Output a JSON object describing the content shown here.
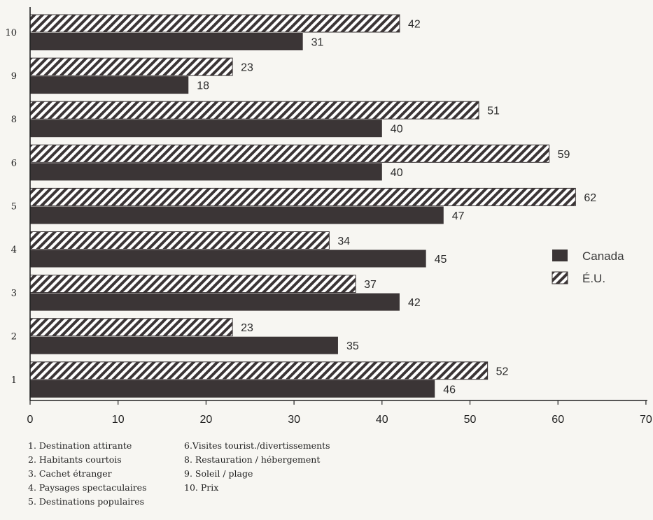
{
  "chart_data": {
    "type": "bar",
    "orientation": "horizontal",
    "categories": [
      "1",
      "2",
      "3",
      "4",
      "5",
      "6",
      "8",
      "9",
      "10"
    ],
    "series": [
      {
        "name": "É.U.",
        "pattern": "hatched",
        "color": "#3b3536",
        "values": [
          52,
          23,
          37,
          34,
          62,
          59,
          51,
          23,
          42
        ]
      },
      {
        "name": "Canada",
        "pattern": "solid",
        "color": "#3b3536",
        "values": [
          46,
          35,
          42,
          45,
          47,
          40,
          40,
          18,
          31
        ]
      }
    ],
    "xlim": [
      0,
      70
    ],
    "xticks": [
      0,
      10,
      20,
      30,
      40,
      50,
      60,
      70
    ],
    "legend": {
      "position": "right",
      "entries": [
        "Canada",
        "É.U."
      ]
    },
    "grid": false
  },
  "notes": {
    "left": [
      "1. Destination attirante",
      "2. Habitants courtois",
      "3. Cachet étranger",
      "4. Paysages spectaculaires",
      "5. Destinations populaires"
    ],
    "right": [
      "6.Visites tourist./divertissements",
      "8. Restauration / hébergement",
      "9. Soleil / plage",
      "10. Prix"
    ]
  }
}
